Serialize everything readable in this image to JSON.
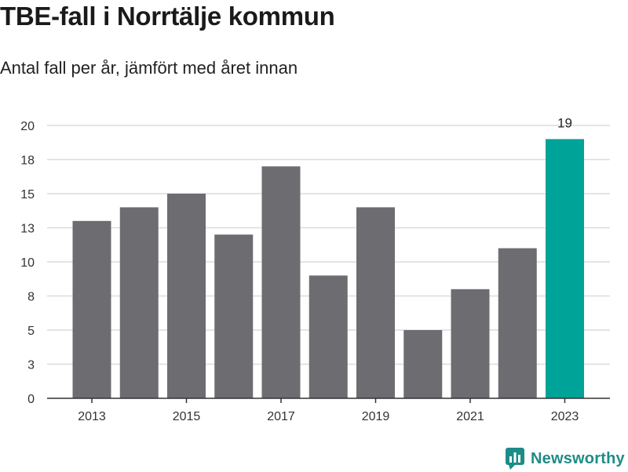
{
  "title": "TBE-fall i Norrtälje kommun",
  "subtitle": "Antal fall per år, jämfört med året innan",
  "brand": {
    "name": "Newsworthy",
    "icon": "bar-chart-icon",
    "color": "#1e8c86"
  },
  "colors": {
    "bar": "#6d6c71",
    "highlight": "#00a398",
    "grid": "#dcdcdc",
    "axis": "#333333"
  },
  "chart_data": {
    "type": "bar",
    "categories": [
      "2013",
      "2014",
      "2015",
      "2016",
      "2017",
      "2018",
      "2019",
      "2020",
      "2021",
      "2022",
      "2023"
    ],
    "values": [
      13,
      14,
      15,
      12,
      17,
      9,
      14,
      5,
      8,
      11,
      19
    ],
    "highlight_index": 10,
    "data_labels": [
      {
        "index": 10,
        "text": "19"
      }
    ],
    "x_tick_labels": [
      "2013",
      "2015",
      "2017",
      "2019",
      "2021",
      "2023"
    ],
    "y_ticks": [
      0,
      2.5,
      5,
      7.5,
      10,
      12.5,
      15,
      17.5,
      20
    ],
    "y_tick_labels": [
      "0",
      "3",
      "5",
      "8",
      "10",
      "13",
      "15",
      "18",
      "20"
    ],
    "ylim": [
      0,
      20
    ],
    "grid": true,
    "xlabel": "",
    "ylabel": ""
  }
}
